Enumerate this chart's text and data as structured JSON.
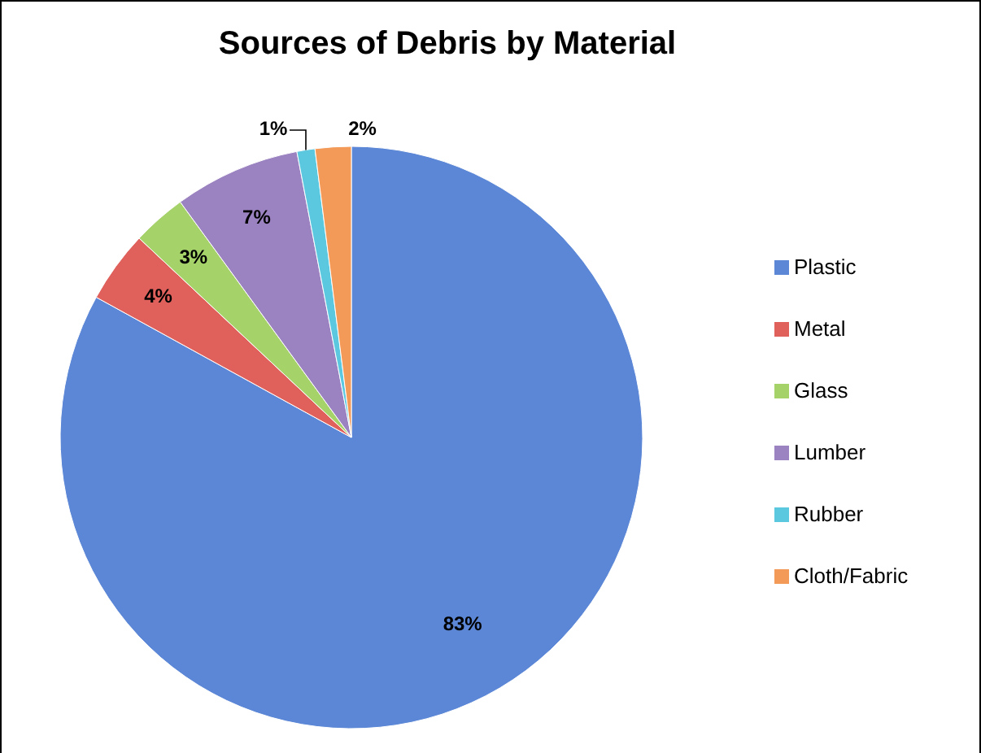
{
  "chart_data": {
    "type": "pie",
    "title": "Sources of Debris by Material",
    "categories": [
      "Plastic",
      "Metal",
      "Glass",
      "Lumber",
      "Rubber",
      "Cloth/Fabric"
    ],
    "values": [
      83,
      4,
      3,
      7,
      1,
      2
    ],
    "value_labels": [
      "83%",
      "4%",
      "3%",
      "7%",
      "1%",
      "2%"
    ],
    "colors": [
      "#5b87d6",
      "#e0615c",
      "#a6d26a",
      "#9b82c0",
      "#5bc8e0",
      "#f39a58"
    ],
    "legend": "right"
  }
}
